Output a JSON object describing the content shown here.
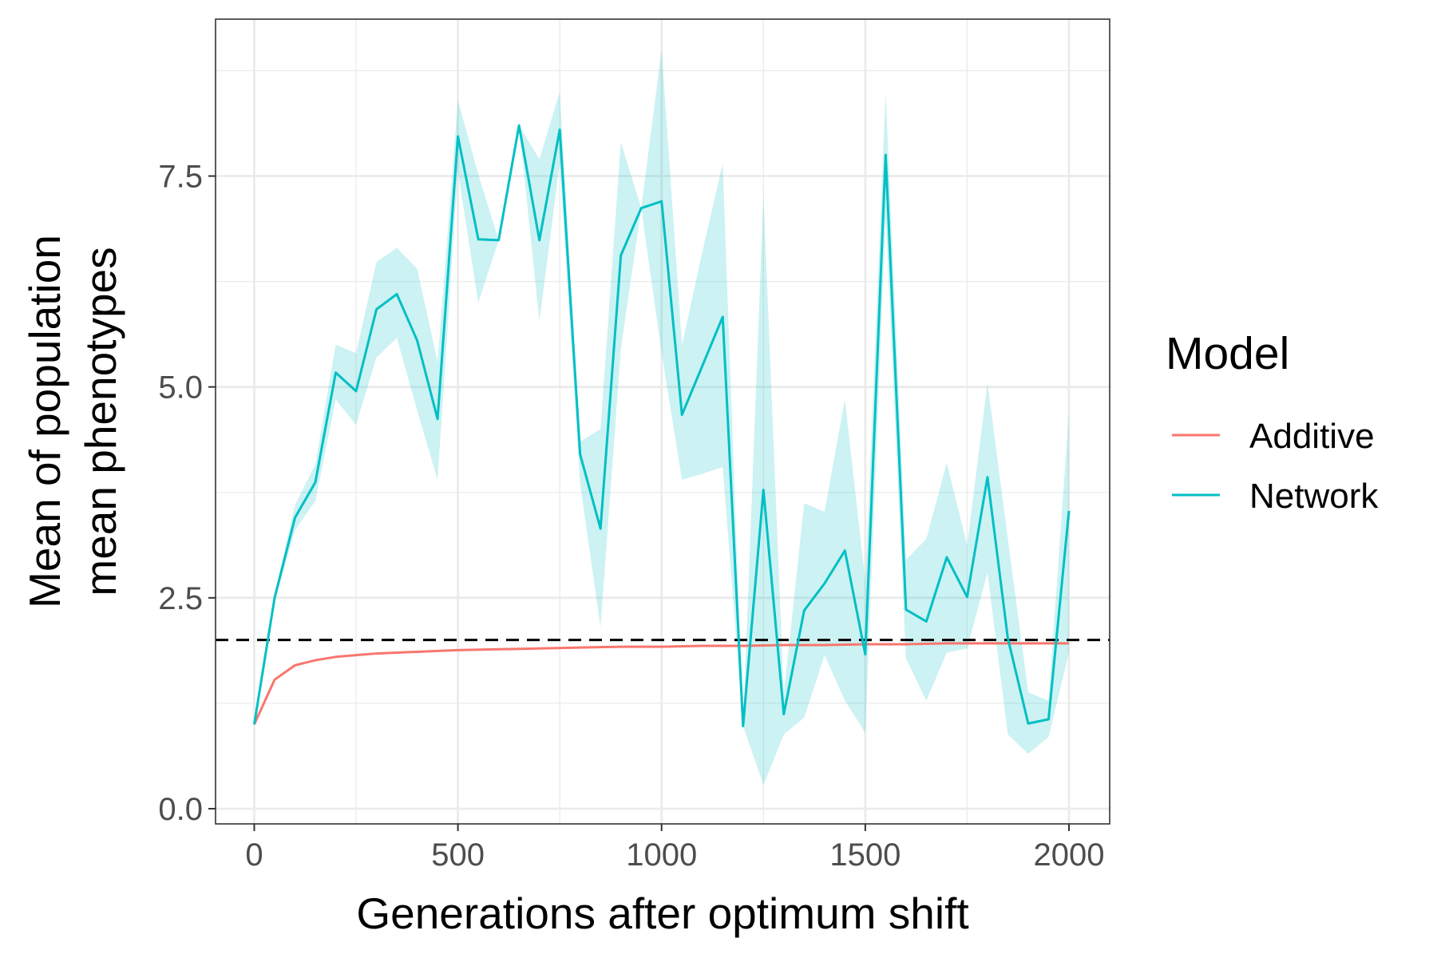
{
  "chart_data": {
    "type": "line",
    "xlabel": "Generations after optimum shift",
    "ylabel_lines": [
      "Mean of population",
      "mean phenotypes"
    ],
    "xlim": [
      -95,
      2100
    ],
    "ylim": [
      -0.18,
      9.36
    ],
    "x_ticks": [
      0,
      500,
      1000,
      1500,
      2000
    ],
    "x_tick_labels": [
      "0",
      "500",
      "1000",
      "1500",
      "2000"
    ],
    "y_ticks": [
      0.0,
      2.5,
      5.0,
      7.5
    ],
    "y_tick_labels": [
      "0.0",
      "2.5",
      "5.0",
      "7.5"
    ],
    "x_minor": [
      250,
      750,
      1250,
      1750
    ],
    "y_minor": [
      1.25,
      3.75,
      6.25,
      8.75
    ],
    "grid": true,
    "reference_line": {
      "y": 2.0,
      "style": "dashed",
      "color": "#000000"
    },
    "legend": {
      "title": "Model",
      "placement": "right",
      "entries": [
        "Additive",
        "Network"
      ]
    },
    "series": [
      {
        "name": "Additive",
        "color": "#F8766D",
        "x": [
          0,
          50,
          100,
          150,
          200,
          250,
          300,
          350,
          400,
          450,
          500,
          600,
          700,
          800,
          900,
          1000,
          1100,
          1200,
          1300,
          1400,
          1500,
          1600,
          1700,
          1800,
          1900,
          2000
        ],
        "y": [
          1.0,
          1.53,
          1.7,
          1.76,
          1.8,
          1.82,
          1.84,
          1.85,
          1.86,
          1.87,
          1.88,
          1.89,
          1.9,
          1.91,
          1.92,
          1.92,
          1.93,
          1.93,
          1.94,
          1.94,
          1.95,
          1.95,
          1.96,
          1.96,
          1.96,
          1.96
        ]
      },
      {
        "name": "Network",
        "color": "#00BFC4",
        "ribbon_color": "#00BFC4",
        "ribbon_opacity": 0.2,
        "x": [
          0,
          50,
          100,
          150,
          200,
          250,
          300,
          350,
          400,
          450,
          500,
          550,
          600,
          650,
          700,
          750,
          800,
          850,
          900,
          950,
          1000,
          1050,
          1100,
          1150,
          1200,
          1250,
          1300,
          1350,
          1400,
          1450,
          1500,
          1550,
          1600,
          1650,
          1700,
          1750,
          1800,
          1850,
          1900,
          1950,
          2000
        ],
        "y": [
          1.0,
          2.5,
          3.45,
          3.87,
          5.17,
          4.95,
          5.92,
          6.1,
          5.55,
          4.62,
          7.97,
          6.75,
          6.74,
          8.1,
          6.74,
          8.05,
          4.2,
          3.32,
          6.56,
          7.12,
          7.2,
          4.67,
          5.25,
          5.83,
          0.98,
          3.78,
          1.12,
          2.35,
          2.67,
          3.06,
          1.83,
          7.75,
          2.36,
          2.22,
          2.98,
          2.51,
          3.93,
          2.02,
          1.01,
          1.06,
          3.53
        ],
        "lower": [
          1.0,
          2.45,
          3.3,
          3.65,
          4.85,
          4.55,
          5.35,
          5.58,
          4.72,
          3.9,
          7.55,
          6.0,
          6.74,
          8.1,
          5.78,
          7.65,
          3.85,
          2.15,
          5.45,
          7.12,
          5.4,
          3.9,
          3.97,
          4.05,
          0.98,
          0.28,
          0.88,
          1.08,
          1.82,
          1.28,
          0.9,
          7.0,
          1.78,
          1.28,
          1.85,
          1.9,
          2.8,
          0.88,
          0.65,
          0.85,
          1.85
        ],
        "upper": [
          1.0,
          2.55,
          3.6,
          4.08,
          5.5,
          5.4,
          6.48,
          6.65,
          6.4,
          5.3,
          8.4,
          7.52,
          6.74,
          8.1,
          7.7,
          8.5,
          4.35,
          4.5,
          7.9,
          7.12,
          9.0,
          5.5,
          6.6,
          7.65,
          0.98,
          7.28,
          1.36,
          3.62,
          3.52,
          4.85,
          2.7,
          8.5,
          2.95,
          3.2,
          4.1,
          3.12,
          5.05,
          3.2,
          1.38,
          1.28,
          4.7
        ]
      }
    ]
  }
}
